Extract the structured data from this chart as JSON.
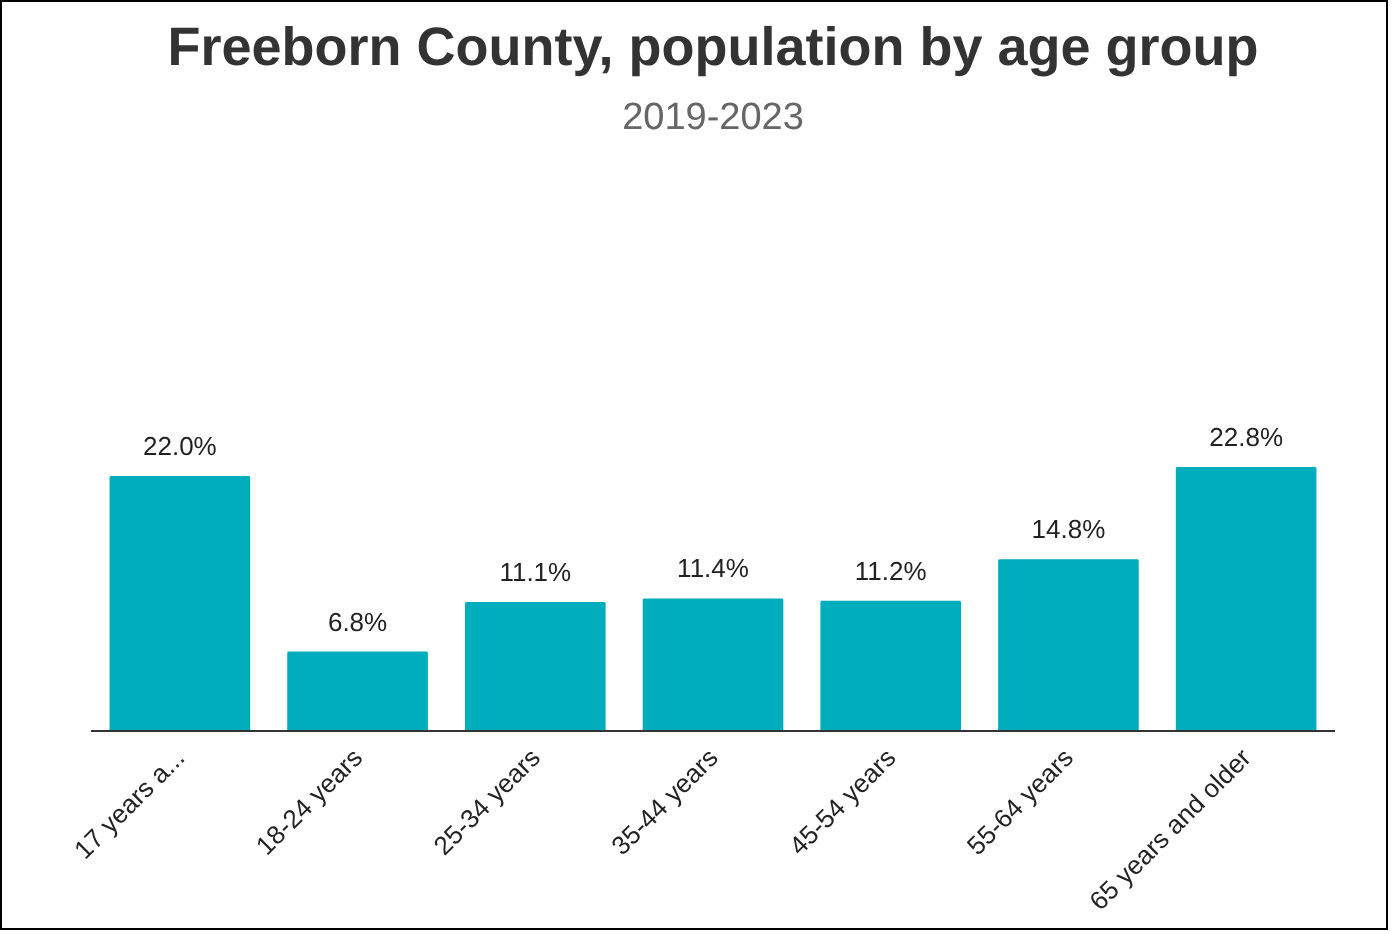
{
  "chart_data": {
    "type": "bar",
    "title": "Freeborn County, population by age group",
    "subtitle": "2019-2023",
    "categories": [
      "17 years a...",
      "18-24 years",
      "25-34 years",
      "35-44 years",
      "45-54 years",
      "55-64 years",
      "65 years and older"
    ],
    "values": [
      22.0,
      6.8,
      11.1,
      11.4,
      11.2,
      14.8,
      22.8
    ],
    "value_labels": [
      "22.0%",
      "6.8%",
      "11.1%",
      "11.4%",
      "11.2%",
      "14.8%",
      "22.8%"
    ],
    "color": "#00adbd"
  }
}
